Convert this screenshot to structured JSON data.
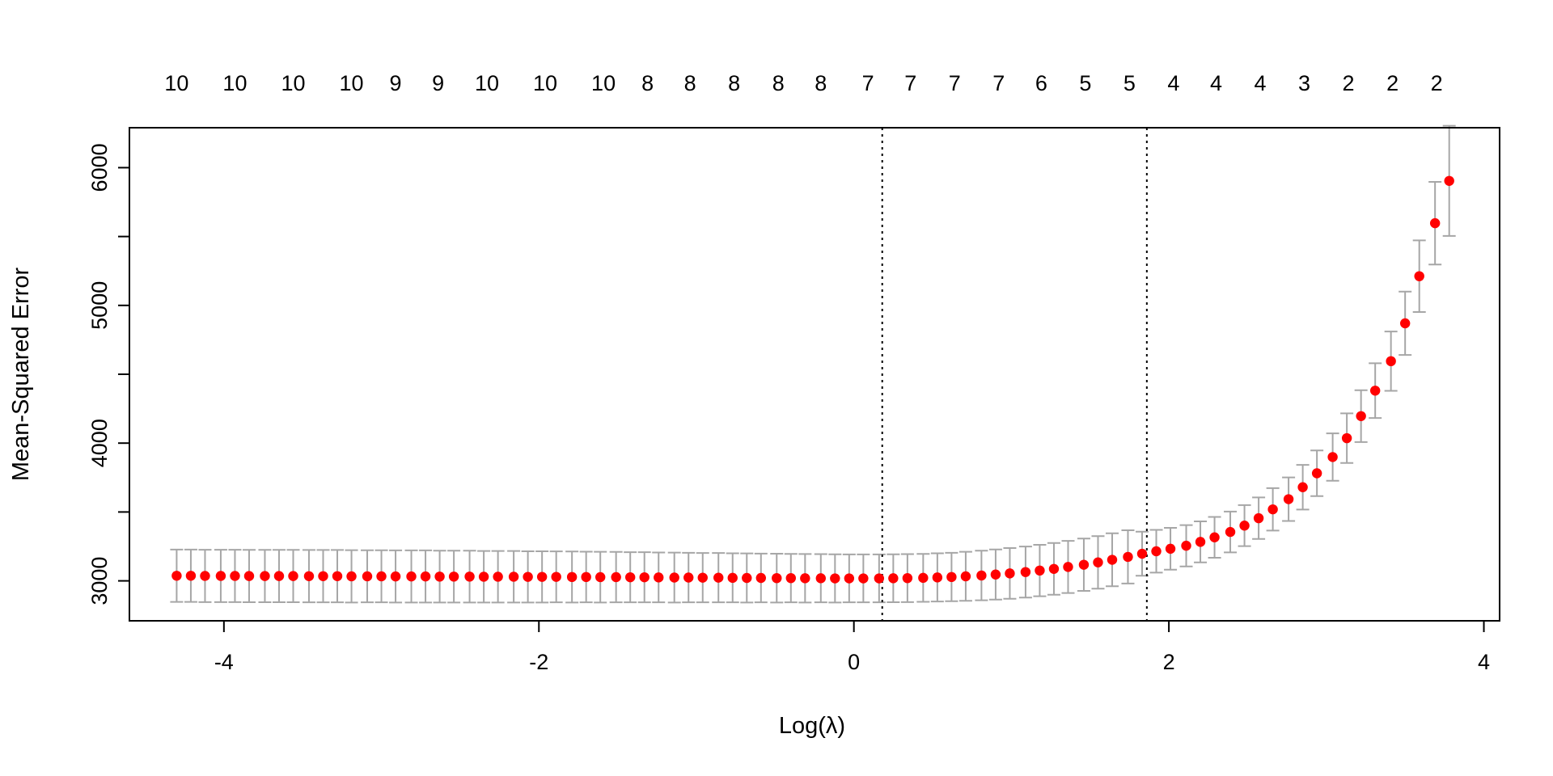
{
  "chart_data": {
    "type": "scatter",
    "title": "",
    "xlabel": "Log(λ)",
    "ylabel": "Mean-Squared Error",
    "xlim": [
      -4.6,
      4.1
    ],
    "ylim": [
      2710,
      6290
    ],
    "x_ticks": [
      -4,
      -2,
      0,
      2,
      4
    ],
    "x_tick_labels": [
      "-4",
      "-2",
      "0",
      "2",
      "4"
    ],
    "y_ticks": [
      3000,
      4000,
      5000,
      6000
    ],
    "y_tick_labels": [
      "3000",
      "4000",
      "5000",
      "6000"
    ],
    "top_axis": {
      "positions": [
        -4.3,
        -3.93,
        -3.56,
        -3.19,
        -2.91,
        -2.64,
        -2.33,
        -1.96,
        -1.59,
        -1.31,
        -1.04,
        -0.76,
        -0.48,
        -0.21,
        0.09,
        0.36,
        0.64,
        0.92,
        1.19,
        1.47,
        1.75,
        2.03,
        2.3,
        2.58,
        2.86,
        3.14,
        3.42,
        3.7
      ],
      "labels": [
        "10",
        "10",
        "10",
        "10",
        "9",
        "9",
        "10",
        "10",
        "10",
        "8",
        "8",
        "8",
        "8",
        "8",
        "7",
        "7",
        "7",
        "7",
        "6",
        "5",
        "5",
        "4",
        "4",
        "4",
        "3",
        "2",
        "2",
        "2"
      ]
    },
    "vlines": [
      0.18,
      1.86
    ],
    "grid": false,
    "series": [
      {
        "color": "#ff0000",
        "errbar_color": "#a6a6a6",
        "x": [
          -4.3,
          -4.21,
          -4.12,
          -4.02,
          -3.93,
          -3.84,
          -3.74,
          -3.65,
          -3.56,
          -3.46,
          -3.37,
          -3.28,
          -3.19,
          -3.09,
          -3.0,
          -2.91,
          -2.81,
          -2.72,
          -2.63,
          -2.54,
          -2.44,
          -2.35,
          -2.26,
          -2.16,
          -2.07,
          -1.98,
          -1.89,
          -1.79,
          -1.7,
          -1.61,
          -1.51,
          -1.42,
          -1.33,
          -1.24,
          -1.14,
          -1.05,
          -0.96,
          -0.86,
          -0.77,
          -0.68,
          -0.59,
          -0.49,
          -0.4,
          -0.31,
          -0.21,
          -0.12,
          -0.03,
          0.06,
          0.16,
          0.25,
          0.34,
          0.44,
          0.53,
          0.62,
          0.71,
          0.81,
          0.9,
          0.99,
          1.09,
          1.18,
          1.27,
          1.36,
          1.46,
          1.55,
          1.64,
          1.74,
          1.83,
          1.92,
          2.01,
          2.11,
          2.2,
          2.29,
          2.39,
          2.48,
          2.57,
          2.66,
          2.76,
          2.85,
          2.94,
          3.04,
          3.13,
          3.22,
          3.31,
          3.41,
          3.5,
          3.59,
          3.69,
          3.78
        ],
        "y": [
          3037,
          3037,
          3036,
          3036,
          3036,
          3035,
          3035,
          3035,
          3035,
          3034,
          3034,
          3034,
          3033,
          3033,
          3033,
          3032,
          3032,
          3032,
          3031,
          3031,
          3031,
          3030,
          3030,
          3030,
          3029,
          3029,
          3029,
          3028,
          3028,
          3027,
          3027,
          3026,
          3026,
          3025,
          3024,
          3024,
          3023,
          3023,
          3022,
          3021,
          3021,
          3020,
          3020,
          3019,
          3019,
          3018,
          3018,
          3018,
          3018,
          3019,
          3020,
          3022,
          3025,
          3028,
          3033,
          3039,
          3046,
          3054,
          3064,
          3075,
          3087,
          3101,
          3117,
          3134,
          3153,
          3174,
          3197,
          3215,
          3233,
          3255,
          3283,
          3316,
          3355,
          3401,
          3455,
          3519,
          3593,
          3680,
          3781,
          3899,
          4036,
          4196,
          4381,
          4595,
          4870,
          5212,
          5597,
          5904
        ],
        "err": [
          190,
          190,
          190,
          190,
          190,
          190,
          190,
          190,
          190,
          190,
          190,
          190,
          190,
          189,
          189,
          189,
          189,
          189,
          188,
          188,
          188,
          187,
          187,
          187,
          186,
          186,
          185,
          185,
          184,
          184,
          183,
          182,
          182,
          181,
          181,
          180,
          179,
          179,
          178,
          178,
          177,
          177,
          176,
          176,
          175,
          175,
          174,
          174,
          174,
          174,
          174,
          174,
          175,
          176,
          178,
          180,
          182,
          184,
          185,
          187,
          188,
          189,
          190,
          191,
          192,
          193,
          160,
          155,
          152,
          150,
          149,
          148,
          148,
          149,
          151,
          154,
          158,
          162,
          166,
          172,
          180,
          188,
          199,
          215,
          230,
          260,
          300,
          400
        ]
      }
    ]
  }
}
